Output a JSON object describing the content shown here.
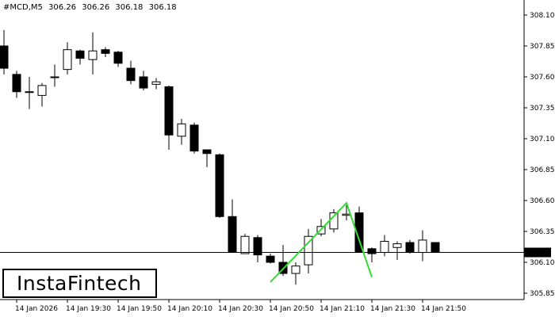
{
  "header": {
    "symbol": "#MCD,M5",
    "open": "306.26",
    "high": "306.26",
    "low": "306.18",
    "close": "306.18"
  },
  "logo": {
    "text": "InstaFintech"
  },
  "price_marker": {
    "label": "306.18",
    "value": 306.18
  },
  "colors": {
    "bull": "#ffffff",
    "bear": "#000000",
    "pattern": "#32dc32",
    "grid": "#000000"
  },
  "chart_data": {
    "type": "candlestick",
    "ylim": [
      305.8,
      308.2
    ],
    "y_ticks": [
      308.1,
      307.85,
      307.6,
      307.35,
      307.1,
      306.85,
      306.6,
      306.35,
      306.1,
      305.85
    ],
    "y_tick_labels": [
      "308.10",
      "307.85",
      "307.60",
      "307.35",
      "307.10",
      "306.85",
      "306.60",
      "306.35",
      "306.10",
      "305.85"
    ],
    "x_tick_labels": [
      {
        "index": 1,
        "label": "14 Jan 2026"
      },
      {
        "index": 5,
        "label": "14 Jan 19:30"
      },
      {
        "index": 9,
        "label": "14 Jan 19:50"
      },
      {
        "index": 13,
        "label": "14 Jan 20:10"
      },
      {
        "index": 17,
        "label": "14 Jan 20:30"
      },
      {
        "index": 21,
        "label": "14 Jan 20:50"
      },
      {
        "index": 25,
        "label": "14 Jan 21:10"
      },
      {
        "index": 29,
        "label": "14 Jan 21:30"
      },
      {
        "index": 33,
        "label": "14 Jan 21:50"
      }
    ],
    "candles": [
      {
        "o": 307.85,
        "h": 307.98,
        "l": 307.62,
        "c": 307.67
      },
      {
        "o": 307.62,
        "h": 307.65,
        "l": 307.43,
        "c": 307.48
      },
      {
        "o": 307.48,
        "h": 307.6,
        "l": 307.34,
        "c": 307.48
      },
      {
        "o": 307.45,
        "h": 307.55,
        "l": 307.36,
        "c": 307.53
      },
      {
        "o": 307.6,
        "h": 307.7,
        "l": 307.52,
        "c": 307.6
      },
      {
        "o": 307.66,
        "h": 307.88,
        "l": 307.62,
        "c": 307.82
      },
      {
        "o": 307.81,
        "h": 307.82,
        "l": 307.7,
        "c": 307.75
      },
      {
        "o": 307.74,
        "h": 307.96,
        "l": 307.62,
        "c": 307.81
      },
      {
        "o": 307.82,
        "h": 307.84,
        "l": 307.76,
        "c": 307.79
      },
      {
        "o": 307.8,
        "h": 307.81,
        "l": 307.68,
        "c": 307.71
      },
      {
        "o": 307.67,
        "h": 307.73,
        "l": 307.54,
        "c": 307.57
      },
      {
        "o": 307.6,
        "h": 307.65,
        "l": 307.49,
        "c": 307.51
      },
      {
        "o": 307.54,
        "h": 307.59,
        "l": 307.5,
        "c": 307.56
      },
      {
        "o": 307.52,
        "h": 307.53,
        "l": 307.01,
        "c": 307.13
      },
      {
        "o": 307.12,
        "h": 307.26,
        "l": 307.05,
        "c": 307.22
      },
      {
        "o": 307.21,
        "h": 307.23,
        "l": 306.98,
        "c": 307.0
      },
      {
        "o": 307.01,
        "h": 307.01,
        "l": 306.87,
        "c": 306.98
      },
      {
        "o": 306.97,
        "h": 306.98,
        "l": 306.46,
        "c": 306.47
      },
      {
        "o": 306.47,
        "h": 306.61,
        "l": 306.18,
        "c": 306.18
      },
      {
        "o": 306.17,
        "h": 306.33,
        "l": 306.17,
        "c": 306.31
      },
      {
        "o": 306.3,
        "h": 306.32,
        "l": 306.1,
        "c": 306.16
      },
      {
        "o": 306.15,
        "h": 306.17,
        "l": 306.09,
        "c": 306.1
      },
      {
        "o": 306.1,
        "h": 306.24,
        "l": 305.99,
        "c": 306.01
      },
      {
        "o": 306.01,
        "h": 306.1,
        "l": 305.92,
        "c": 306.07
      },
      {
        "o": 306.08,
        "h": 306.37,
        "l": 306.01,
        "c": 306.31
      },
      {
        "o": 306.33,
        "h": 306.45,
        "l": 306.31,
        "c": 306.39
      },
      {
        "o": 306.37,
        "h": 306.53,
        "l": 306.34,
        "c": 306.5
      },
      {
        "o": 306.48,
        "h": 306.58,
        "l": 306.44,
        "c": 306.49
      },
      {
        "o": 306.5,
        "h": 306.55,
        "l": 306.18,
        "c": 306.18
      },
      {
        "o": 306.21,
        "h": 306.22,
        "l": 306.1,
        "c": 306.17
      },
      {
        "o": 306.18,
        "h": 306.32,
        "l": 306.15,
        "c": 306.27
      },
      {
        "o": 306.22,
        "h": 306.27,
        "l": 306.12,
        "c": 306.25
      },
      {
        "o": 306.26,
        "h": 306.28,
        "l": 306.17,
        "c": 306.18
      },
      {
        "o": 306.18,
        "h": 306.36,
        "l": 306.11,
        "c": 306.28
      },
      {
        "o": 306.26,
        "h": 306.26,
        "l": 306.18,
        "c": 306.18
      }
    ],
    "pattern": {
      "name": "double top",
      "points": [
        {
          "index": 21,
          "price": 305.94
        },
        {
          "index": 27,
          "price": 306.58
        },
        {
          "index": 29,
          "price": 305.98
        }
      ]
    },
    "grid": false
  }
}
